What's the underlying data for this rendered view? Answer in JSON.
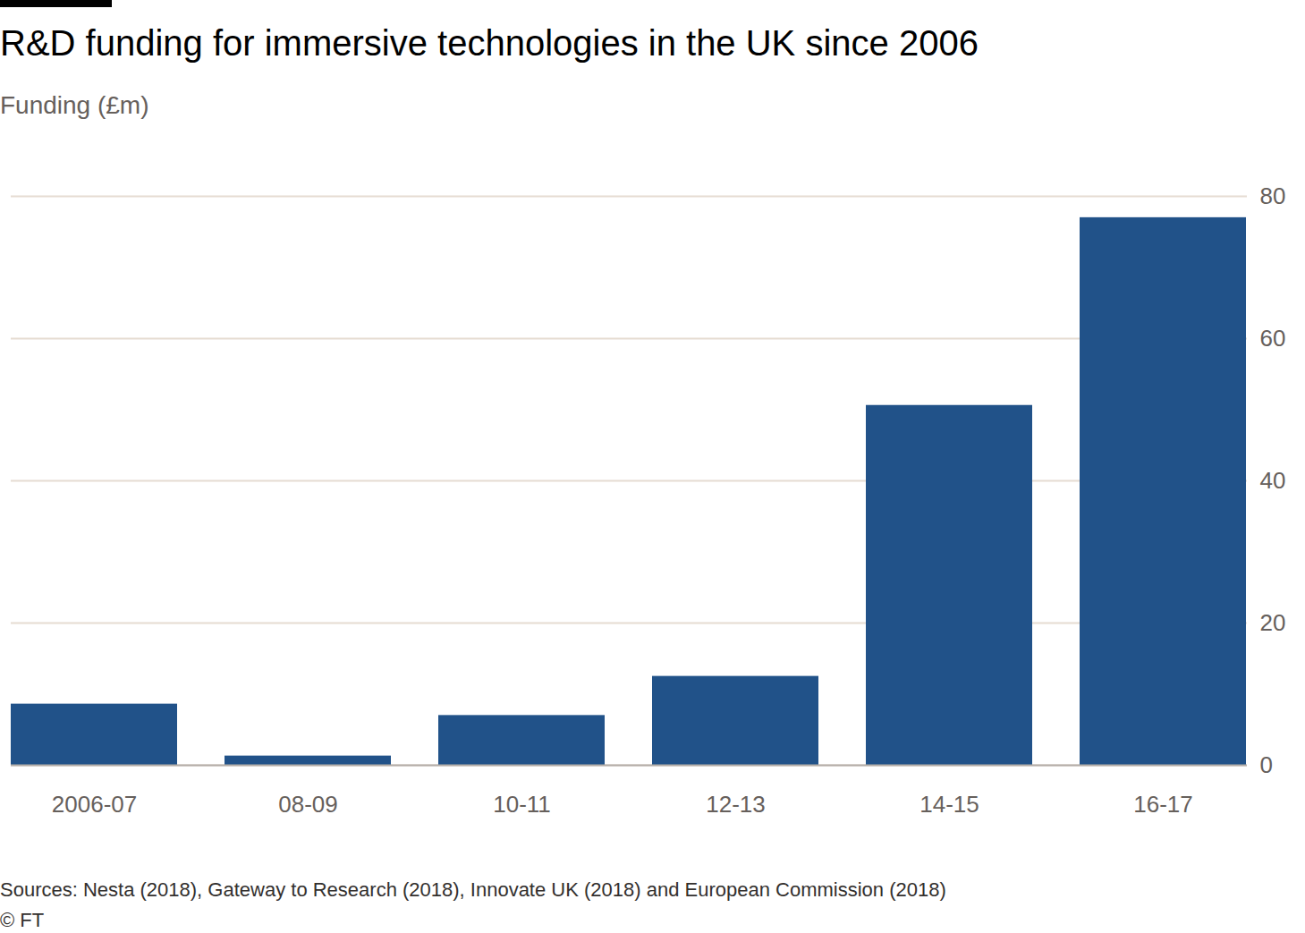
{
  "chart_data": {
    "type": "bar",
    "title": "R&D funding for immersive technologies in the UK since 2006",
    "subtitle": "Funding (£m)",
    "categories": [
      "2006-07",
      "08-09",
      "10-11",
      "12-13",
      "14-15",
      "16-17"
    ],
    "values": [
      8.6,
      1.3,
      7.0,
      12.5,
      50.6,
      77.0
    ],
    "color": "#215289",
    "ylim": [
      0,
      80
    ],
    "yticks": [
      0,
      20,
      40,
      60,
      80
    ],
    "grid": true,
    "source": "Sources: Nesta (2018), Gateway to Research (2018), Innovate UK (2018) and European Commission (2018)",
    "credit": "© FT"
  }
}
